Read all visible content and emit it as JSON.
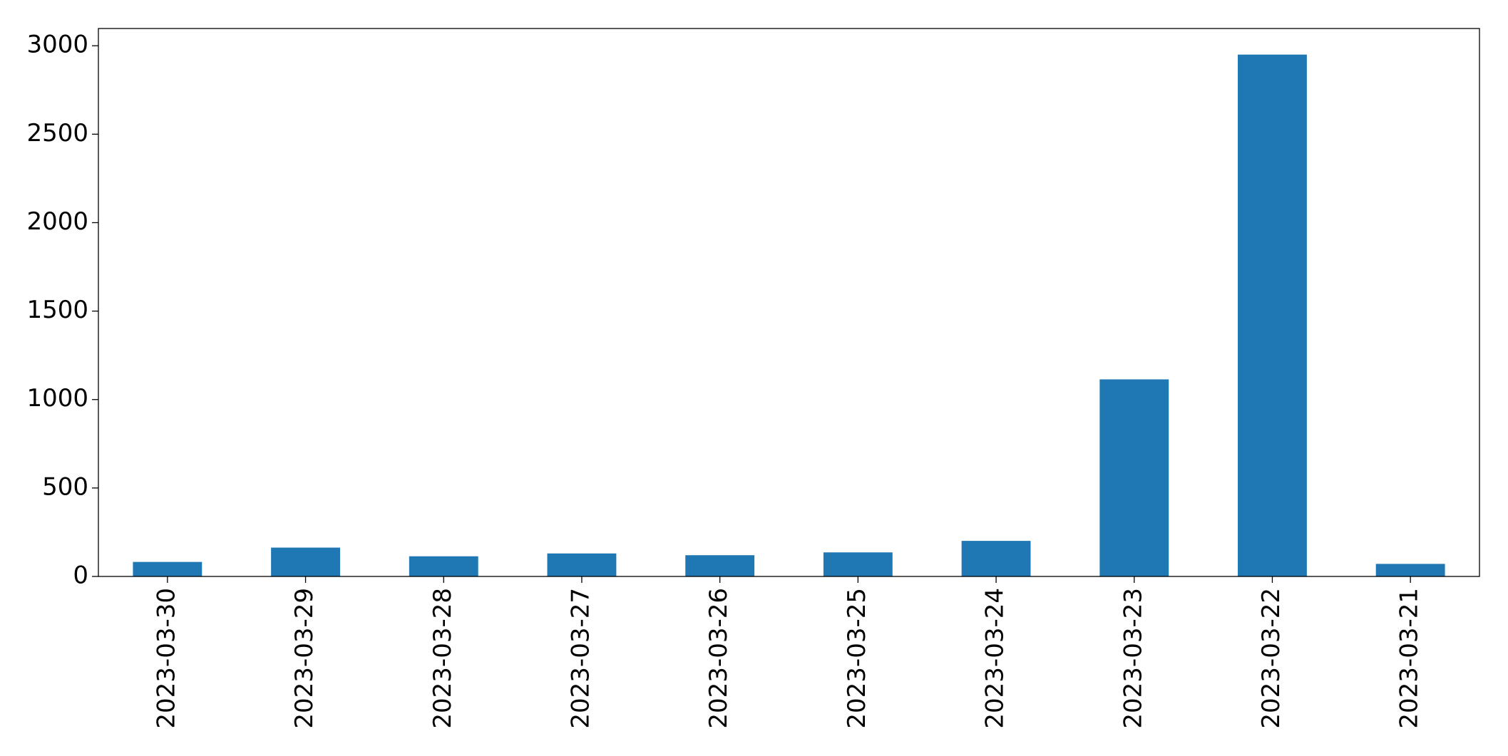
{
  "chart_data": {
    "type": "bar",
    "categories": [
      "2023-03-30",
      "2023-03-29",
      "2023-03-28",
      "2023-03-27",
      "2023-03-26",
      "2023-03-25",
      "2023-03-24",
      "2023-03-23",
      "2023-03-22",
      "2023-03-21"
    ],
    "values": [
      82,
      163,
      114,
      130,
      120,
      136,
      201,
      1114,
      2950,
      71
    ],
    "color": "#1f77b4",
    "ylim": [
      0,
      3097.5
    ],
    "yticks": [
      0,
      500,
      1000,
      1500,
      2000,
      2500,
      3000
    ],
    "grid": false
  }
}
